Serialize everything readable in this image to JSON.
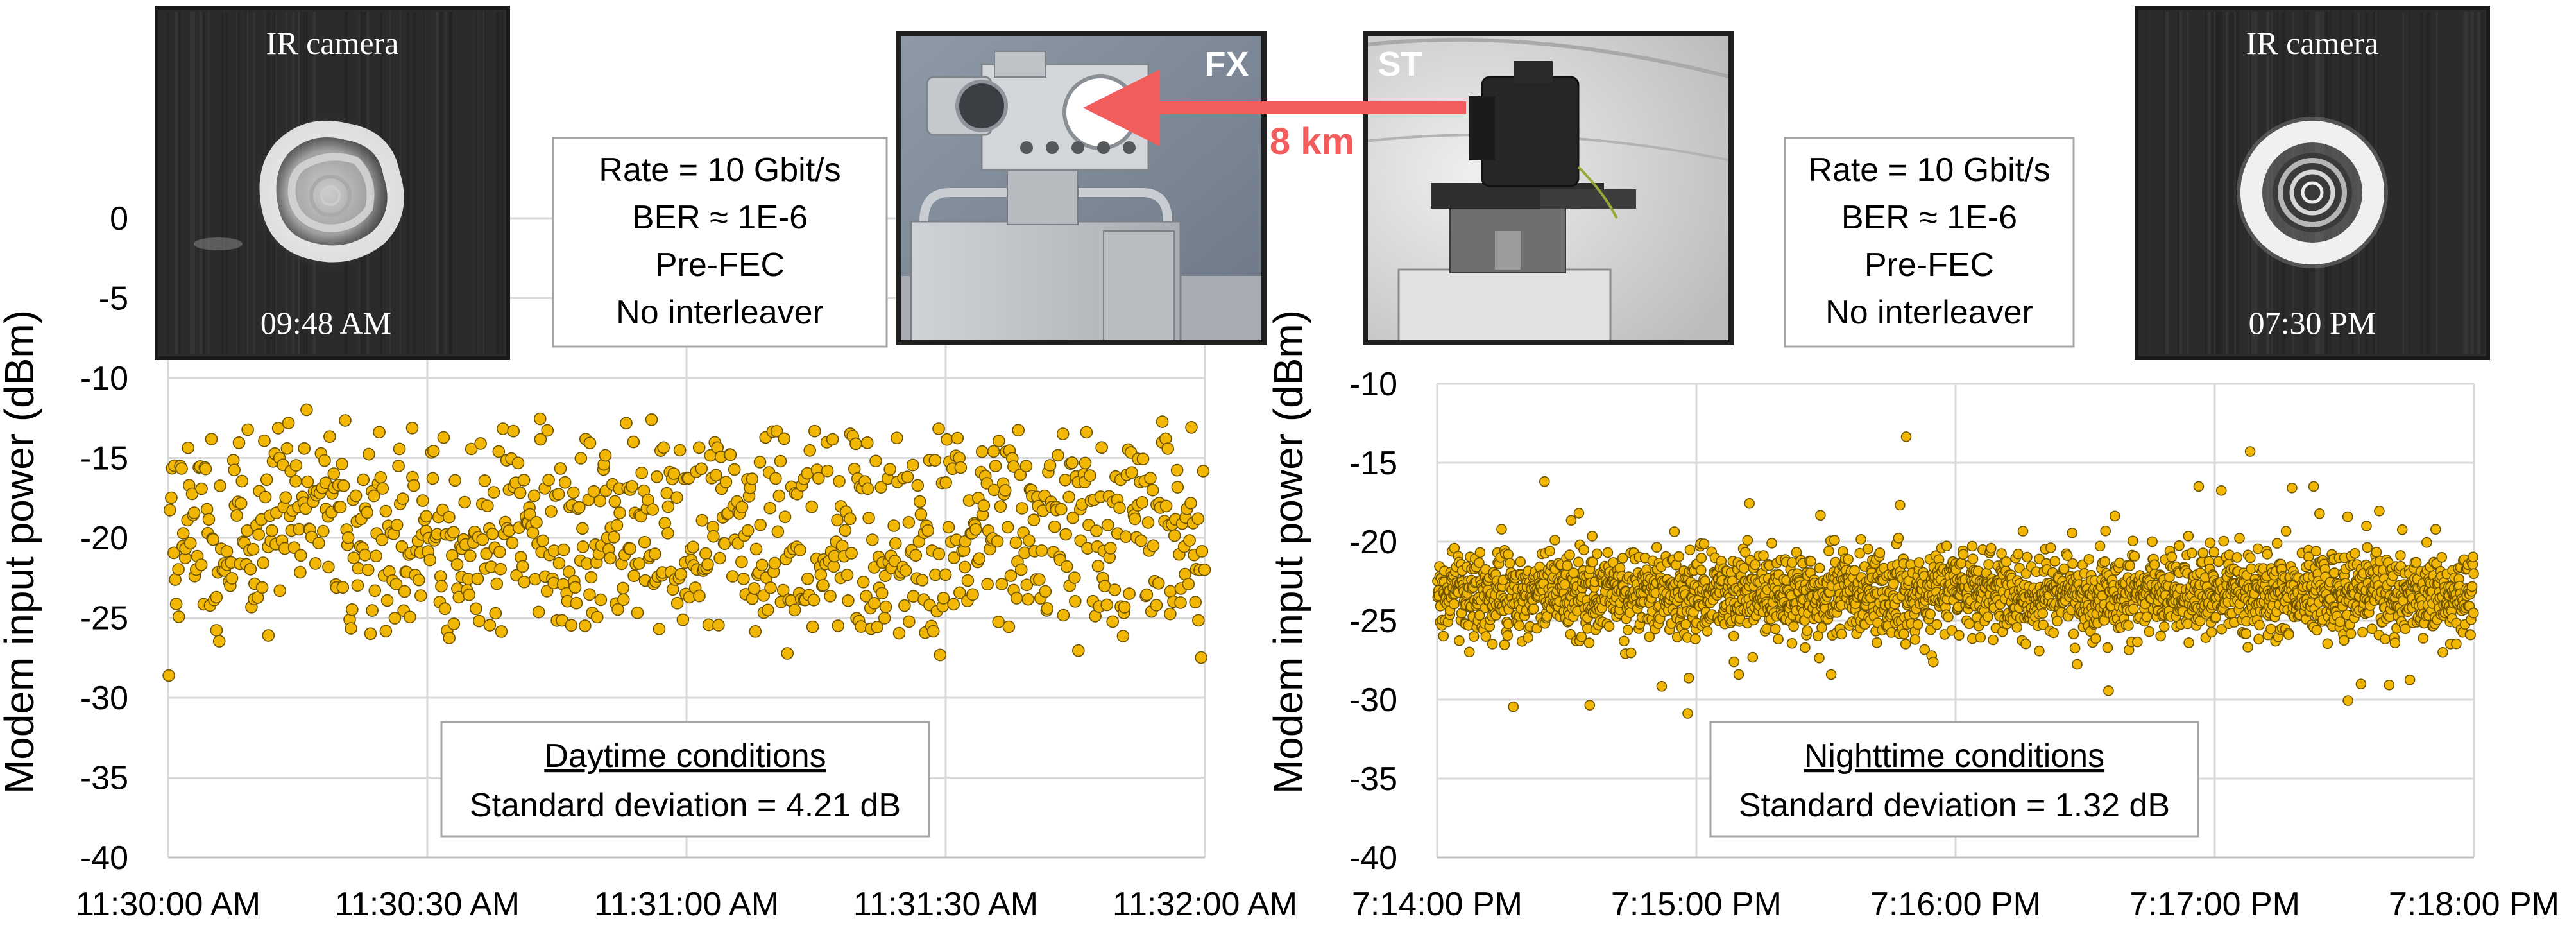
{
  "colors": {
    "marker_fill": "#F2B705",
    "marker_stroke": "#6B5200",
    "grid": "#D9D9D9",
    "axis_text": "#000000",
    "link_arrow": "#F25C5C",
    "photo_frame": "#1F1F1F"
  },
  "chart_data": [
    {
      "type": "scatter",
      "title": "",
      "ylabel": "Modem input power (dBm)",
      "xlabel": "",
      "ylim": [
        -40,
        0
      ],
      "yticks": [
        0,
        -5,
        -10,
        -15,
        -20,
        -25,
        -30,
        -35,
        -40
      ],
      "xlim": [
        "11:30:00 AM",
        "11:32:00 AM"
      ],
      "xticks": [
        "11:30:00 AM",
        "11:30:30 AM",
        "11:31:00 AM",
        "11:31:30 AM",
        "11:32:00 AM"
      ],
      "grid": true,
      "series_color": "#F2B705",
      "statistics": {
        "mean_dBm": -19.5,
        "std_dB": 4.21
      },
      "annotation": {
        "title": "Daytime conditions",
        "text": "Standard deviation = 4.21 dB"
      },
      "link_box": [
        "Rate = 10 Gbit/s",
        "BER ≈ 1E-6",
        "Pre-FEC",
        "No interleaver"
      ],
      "ir_inset": {
        "label": "IR camera",
        "time": "09:48 AM",
        "pattern": "scattered-ring"
      }
    },
    {
      "type": "scatter",
      "title": "",
      "ylabel": "Modem input power (dBm)",
      "xlabel": "",
      "ylim": [
        -40,
        -10
      ],
      "yticks": [
        -10,
        -15,
        -20,
        -25,
        -30,
        -35,
        -40
      ],
      "xlim": [
        "7:14:00 PM",
        "7:18:00 PM"
      ],
      "xticks": [
        "7:14:00 PM",
        "7:15:00 PM",
        "7:16:00 PM",
        "7:17:00 PM",
        "7:18:00 PM"
      ],
      "grid": true,
      "series_color": "#F2B705",
      "statistics": {
        "mean_dBm": -23.3,
        "std_dB": 1.32
      },
      "annotation": {
        "title": "Nighttime conditions",
        "text": "Standard deviation = 1.32 dB"
      },
      "link_box": [
        "Rate = 10 Gbit/s",
        "BER ≈ 1E-6",
        "Pre-FEC",
        "No interleaver"
      ],
      "ir_inset": {
        "label": "IR camera",
        "time": "07:30 PM",
        "pattern": "concentric-rings"
      }
    }
  ],
  "link": {
    "from": "ST",
    "to": "FX",
    "distance": "8 km"
  },
  "photos": {
    "left_label": "FX",
    "right_label": "ST"
  }
}
